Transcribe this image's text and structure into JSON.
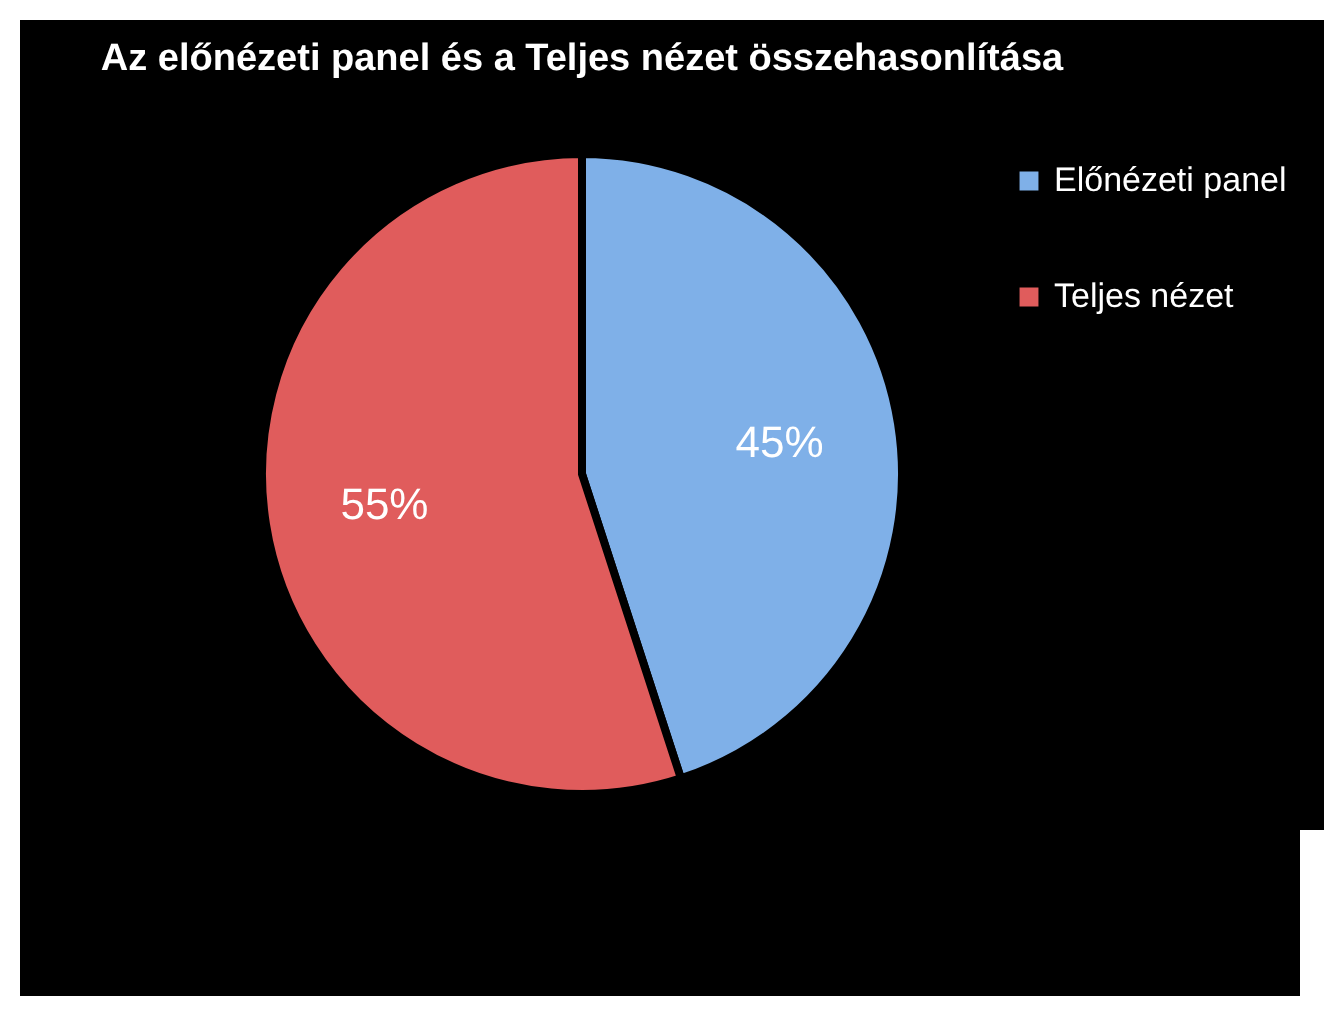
{
  "chart_data": {
    "type": "pie",
    "title": "Az előnézeti panel és a Teljes nézet összehasonlítása",
    "categories": [
      "Előnézeti panel",
      "Teljes nézet"
    ],
    "values": [
      45,
      55
    ],
    "colors": [
      "#7fb0e8",
      "#e05c5c"
    ],
    "value_labels": [
      "45%",
      "55%"
    ],
    "legend": "right"
  }
}
